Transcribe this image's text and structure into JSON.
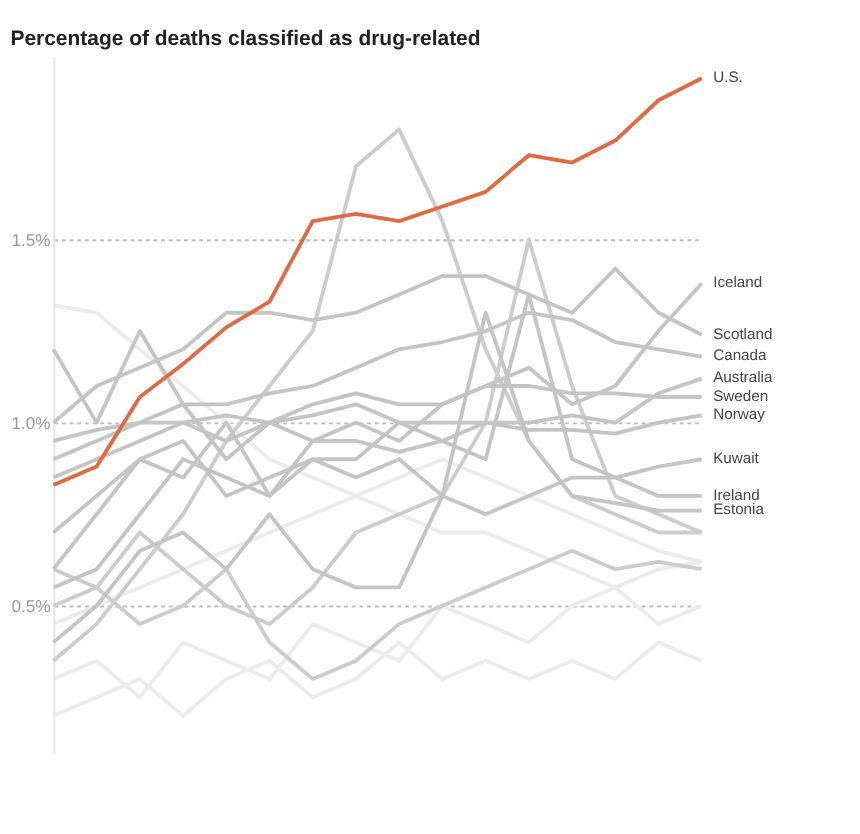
{
  "chart_data": {
    "type": "line",
    "title": "Percentage of deaths classified as drug-related",
    "categories": [
      null,
      null,
      null,
      null,
      null,
      null,
      null,
      null,
      null,
      null,
      null,
      null,
      null,
      null,
      null,
      null
    ],
    "ylim": [
      0.1,
      2.0
    ],
    "yticks": [
      {
        "value": 0.5,
        "label": "0.5%"
      },
      {
        "value": 1.0,
        "label": "1.0%"
      },
      {
        "value": 1.5,
        "label": "1.5%"
      }
    ],
    "grid": "y",
    "tick_labels": "y",
    "line_style": "solid",
    "marker": "none",
    "series": [
      {
        "color": "#ebebeb",
        "values": [
          0.3,
          0.35,
          0.25,
          0.4,
          0.35,
          0.3,
          0.45,
          0.4,
          0.35,
          0.5,
          0.45,
          0.4,
          0.5,
          0.55,
          0.45,
          0.5
        ]
      },
      {
        "color": "#ebebeb",
        "values": [
          0.2,
          0.25,
          0.3,
          0.2,
          0.3,
          0.35,
          0.25,
          0.3,
          0.4,
          0.3,
          0.35,
          0.3,
          0.35,
          0.3,
          0.4,
          0.35
        ]
      },
      {
        "color": "#ebebeb",
        "values": [
          1.32,
          1.3,
          1.2,
          1.1,
          1.0,
          0.9,
          0.85,
          0.8,
          0.75,
          0.7,
          0.7,
          0.65,
          0.6,
          0.55,
          0.6,
          0.62
        ]
      },
      {
        "color": "#ebebeb",
        "values": [
          0.45,
          0.5,
          0.55,
          0.6,
          0.65,
          0.7,
          0.75,
          0.8,
          0.85,
          0.9,
          0.85,
          0.8,
          0.75,
          0.7,
          0.65,
          0.62
        ]
      },
      {
        "color": "#cccccc",
        "values": [
          0.35,
          0.45,
          0.6,
          0.75,
          0.95,
          1.1,
          1.25,
          1.7,
          1.8,
          1.55,
          1.2,
          0.95,
          0.8,
          0.75,
          0.7,
          0.7
        ]
      },
      {
        "color": "#cccccc",
        "values": [
          0.5,
          0.55,
          0.7,
          0.6,
          0.5,
          0.45,
          0.55,
          0.7,
          0.75,
          0.8,
          1.0,
          1.5,
          1.1,
          0.8,
          0.75,
          0.7
        ]
      },
      {
        "color": "#cccccc",
        "values": [
          0.6,
          0.55,
          0.45,
          0.5,
          0.6,
          0.4,
          0.3,
          0.35,
          0.45,
          0.5,
          0.55,
          0.6,
          0.65,
          0.6,
          0.62,
          0.6
        ]
      },
      {
        "name": "Iceland",
        "color": "#c4c4c4",
        "values": [
          0.55,
          0.6,
          0.75,
          0.9,
          0.85,
          0.8,
          0.95,
          1.0,
          0.95,
          1.05,
          1.1,
          1.15,
          1.05,
          1.1,
          1.25,
          1.38
        ]
      },
      {
        "name": "Scotland",
        "color": "#c4c4c4",
        "values": [
          1.0,
          1.1,
          1.15,
          1.2,
          1.3,
          1.3,
          1.28,
          1.3,
          1.35,
          1.4,
          1.4,
          1.35,
          1.3,
          1.42,
          1.3,
          1.24
        ]
      },
      {
        "name": "Canada",
        "color": "#c4c4c4",
        "values": [
          0.9,
          0.95,
          1.0,
          1.05,
          1.05,
          1.08,
          1.1,
          1.15,
          1.2,
          1.22,
          1.25,
          1.3,
          1.28,
          1.22,
          1.2,
          1.18
        ]
      },
      {
        "name": "Australia",
        "color": "#c4c4c4",
        "values": [
          0.85,
          0.9,
          0.95,
          1.0,
          0.95,
          1.0,
          1.02,
          1.05,
          1.0,
          1.0,
          1.0,
          1.0,
          1.02,
          1.0,
          1.08,
          1.12
        ]
      },
      {
        "name": "Sweden",
        "color": "#c4c4c4",
        "values": [
          0.95,
          0.98,
          1.0,
          1.0,
          1.02,
          1.0,
          1.05,
          1.08,
          1.05,
          1.05,
          1.1,
          1.1,
          1.08,
          1.08,
          1.07,
          1.07
        ]
      },
      {
        "name": "Norway",
        "color": "#c4c4c4",
        "values": [
          1.2,
          1.0,
          1.25,
          1.05,
          0.9,
          1.0,
          0.95,
          0.95,
          0.92,
          0.95,
          1.0,
          0.98,
          0.98,
          0.97,
          1.0,
          1.02
        ]
      },
      {
        "name": "Kuwait",
        "color": "#c4c4c4",
        "values": [
          0.6,
          0.75,
          0.9,
          0.85,
          1.0,
          0.8,
          0.9,
          0.85,
          0.9,
          0.8,
          0.75,
          0.8,
          0.85,
          0.85,
          0.88,
          0.9
        ]
      },
      {
        "name": "Ireland",
        "color": "#c4c4c4",
        "values": [
          0.7,
          0.8,
          0.9,
          0.95,
          0.8,
          0.85,
          0.9,
          0.9,
          1.0,
          0.95,
          0.9,
          1.35,
          0.9,
          0.85,
          0.8,
          0.8
        ]
      },
      {
        "name": "Estonia",
        "color": "#c4c4c4",
        "values": [
          0.4,
          0.5,
          0.65,
          0.7,
          0.6,
          0.75,
          0.6,
          0.55,
          0.55,
          0.8,
          1.3,
          0.95,
          0.8,
          0.78,
          0.76,
          0.76
        ]
      },
      {
        "name": "U.S.",
        "color": "#e0693f",
        "values": [
          0.83,
          0.88,
          1.07,
          1.16,
          1.26,
          1.33,
          1.55,
          1.57,
          1.55,
          1.59,
          1.63,
          1.73,
          1.71,
          1.77,
          1.88,
          1.94
        ]
      }
    ]
  }
}
